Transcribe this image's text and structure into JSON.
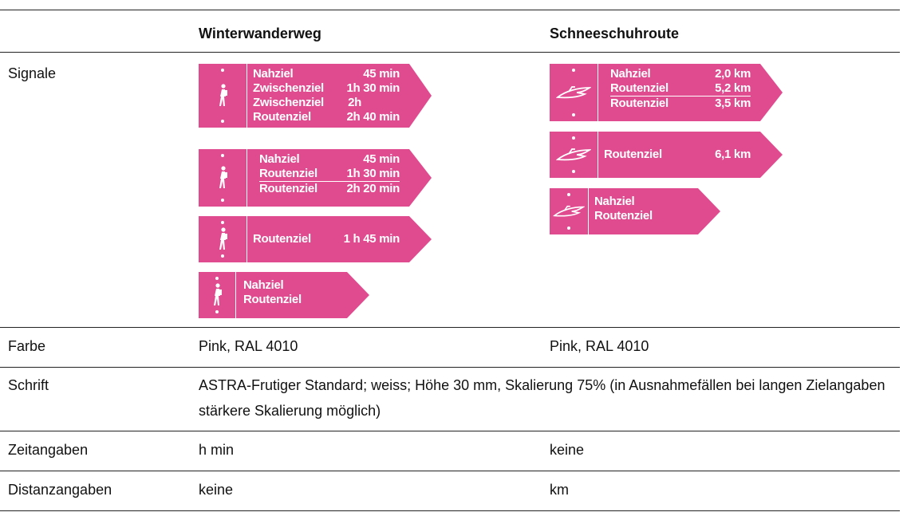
{
  "columns": {
    "winter": "Winterwanderweg",
    "schnee": "Schneeschuhroute"
  },
  "rows": {
    "signale": "Signale",
    "farbe": {
      "label": "Farbe",
      "winter": "Pink, RAL 4010",
      "schnee": "Pink, RAL 4010"
    },
    "schrift": {
      "label": "Schrift",
      "value": "ASTRA-Frutiger Standard; weiss; Höhe 30 mm, Skalierung 75% (in Ausnahmefällen bei langen Zielangaben stärkere Skalierung möglich)"
    },
    "zeit": {
      "label": "Zeitangaben",
      "winter": "h min",
      "schnee": "keine"
    },
    "distanz": {
      "label": "Distanzangaben",
      "winter": "keine",
      "schnee": "km"
    }
  },
  "winter_signs": [
    {
      "rows": [
        {
          "name": "Nahziel",
          "value": "45 min"
        },
        {
          "name": "Zwischenziel",
          "value": "1h  30 min"
        },
        {
          "name": "Zwischenziel",
          "value": "2h"
        },
        {
          "name": "Routenziel",
          "value": "2h  40 min"
        }
      ]
    },
    {
      "rows": [
        {
          "name": "Nahziel",
          "value": "45 min"
        },
        {
          "name": "Routenziel",
          "value": "1h  30 min"
        },
        {
          "name": "Routenziel",
          "value": "2h  20 min"
        }
      ]
    },
    {
      "rows": [
        {
          "name": "Routenziel",
          "value": "1 h  45 min"
        }
      ]
    },
    {
      "rows": [
        {
          "name": "Nahziel",
          "value": ""
        },
        {
          "name": "Routenziel",
          "value": ""
        }
      ]
    }
  ],
  "schnee_signs": [
    {
      "rows": [
        {
          "name": "Nahziel",
          "value": "2,0 km"
        },
        {
          "name": "Routenziel",
          "value": "5,2 km"
        },
        {
          "name": "Routenziel",
          "value": "3,5 km"
        }
      ]
    },
    {
      "rows": [
        {
          "name": "Routenziel",
          "value": "6,1 km"
        }
      ]
    },
    {
      "rows": [
        {
          "name": "Nahziel",
          "value": ""
        },
        {
          "name": "Routenziel",
          "value": ""
        }
      ]
    }
  ],
  "colors": {
    "sign_pink": "#e04b90"
  },
  "icons": {
    "winter": "hiker-icon",
    "schnee": "snowshoe-icon"
  }
}
